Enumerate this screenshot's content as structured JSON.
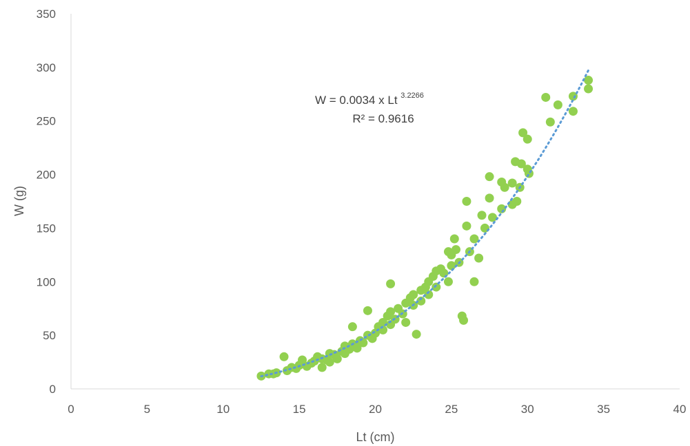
{
  "chart_data": {
    "type": "scatter",
    "title": "",
    "xlabel": "Lt (cm)",
    "ylabel": "W (g)",
    "xlim": [
      0,
      40
    ],
    "ylim": [
      0,
      350
    ],
    "xticks": [
      "0",
      "5",
      "10",
      "15",
      "20",
      "25",
      "30",
      "35",
      "40"
    ],
    "yticks": [
      "0",
      "50",
      "100",
      "150",
      "200",
      "250",
      "300",
      "350"
    ],
    "grid": false,
    "legend": "none",
    "marker_color": "#92D050",
    "trendline_color": "#5B9BD5",
    "trendline": {
      "type": "power",
      "a": 0.0034,
      "b": 3.2266,
      "x_range": [
        12.5,
        34
      ]
    },
    "equation": {
      "prefix": "W = 0.0034 x Lt ",
      "exponent": "3.2266",
      "r2": "R² = 0.9616"
    },
    "points": [
      [
        12.5,
        12
      ],
      [
        13.0,
        14
      ],
      [
        13.3,
        14
      ],
      [
        13.5,
        15
      ],
      [
        14.0,
        30
      ],
      [
        14.2,
        17
      ],
      [
        14.5,
        20
      ],
      [
        14.8,
        19
      ],
      [
        15.0,
        22
      ],
      [
        15.2,
        27
      ],
      [
        15.5,
        21
      ],
      [
        15.8,
        24
      ],
      [
        16.0,
        26
      ],
      [
        16.2,
        30
      ],
      [
        16.5,
        20
      ],
      [
        16.5,
        28
      ],
      [
        16.8,
        27
      ],
      [
        17.0,
        25
      ],
      [
        17.0,
        33
      ],
      [
        17.3,
        32
      ],
      [
        17.5,
        28
      ],
      [
        17.8,
        35
      ],
      [
        18.0,
        33
      ],
      [
        18.0,
        40
      ],
      [
        18.3,
        37
      ],
      [
        18.5,
        42
      ],
      [
        18.5,
        58
      ],
      [
        18.8,
        38
      ],
      [
        19.0,
        45
      ],
      [
        19.2,
        43
      ],
      [
        19.5,
        50
      ],
      [
        19.5,
        73
      ],
      [
        19.8,
        47
      ],
      [
        20.0,
        52
      ],
      [
        20.2,
        58
      ],
      [
        20.5,
        55
      ],
      [
        20.5,
        62
      ],
      [
        20.8,
        68
      ],
      [
        21.0,
        60
      ],
      [
        21.0,
        72
      ],
      [
        21.0,
        98
      ],
      [
        21.3,
        65
      ],
      [
        21.5,
        75
      ],
      [
        21.8,
        70
      ],
      [
        22.0,
        80
      ],
      [
        22.0,
        62
      ],
      [
        22.3,
        85
      ],
      [
        22.5,
        78
      ],
      [
        22.5,
        88
      ],
      [
        22.7,
        51
      ],
      [
        23.0,
        92
      ],
      [
        23.0,
        82
      ],
      [
        23.3,
        95
      ],
      [
        23.5,
        100
      ],
      [
        23.5,
        88
      ],
      [
        23.8,
        105
      ],
      [
        24.0,
        110
      ],
      [
        24.0,
        95
      ],
      [
        24.3,
        112
      ],
      [
        24.5,
        108
      ],
      [
        24.8,
        100
      ],
      [
        24.8,
        128
      ],
      [
        25.0,
        125
      ],
      [
        25.0,
        115
      ],
      [
        25.2,
        140
      ],
      [
        25.3,
        130
      ],
      [
        25.5,
        118
      ],
      [
        25.7,
        68
      ],
      [
        25.8,
        64
      ],
      [
        26.0,
        175
      ],
      [
        26.0,
        152
      ],
      [
        26.2,
        128
      ],
      [
        26.5,
        100
      ],
      [
        26.5,
        140
      ],
      [
        26.8,
        122
      ],
      [
        27.0,
        162
      ],
      [
        27.2,
        150
      ],
      [
        27.5,
        198
      ],
      [
        27.5,
        178
      ],
      [
        27.7,
        160
      ],
      [
        28.3,
        193
      ],
      [
        28.3,
        168
      ],
      [
        28.5,
        188
      ],
      [
        29.0,
        192
      ],
      [
        29.0,
        172
      ],
      [
        29.2,
        212
      ],
      [
        29.3,
        175
      ],
      [
        29.5,
        188
      ],
      [
        29.6,
        210
      ],
      [
        29.7,
        239
      ],
      [
        30.0,
        233
      ],
      [
        30.0,
        205
      ],
      [
        30.1,
        201
      ],
      [
        31.2,
        272
      ],
      [
        31.5,
        249
      ],
      [
        32.0,
        265
      ],
      [
        33.0,
        273
      ],
      [
        33.0,
        259
      ],
      [
        34.0,
        288
      ],
      [
        34.0,
        280
      ]
    ]
  }
}
